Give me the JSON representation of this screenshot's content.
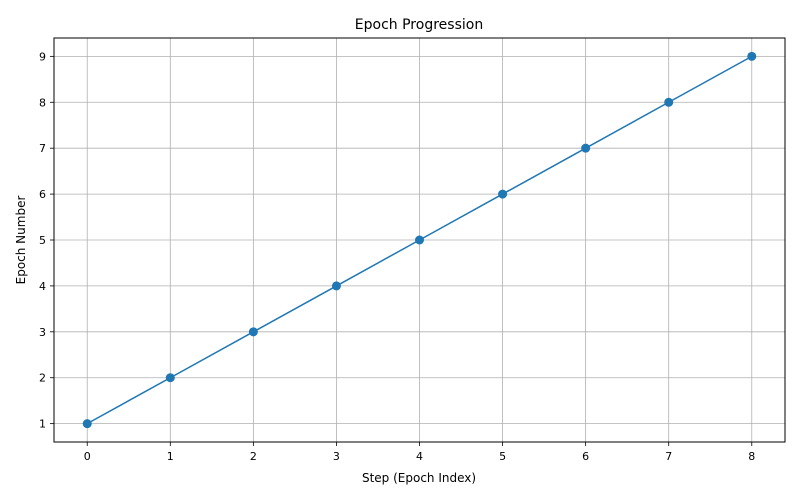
{
  "chart_data": {
    "type": "line",
    "title": "Epoch Progression",
    "xlabel": "Step (Epoch Index)",
    "ylabel": "Epoch Number",
    "x": [
      0,
      1,
      2,
      3,
      4,
      5,
      6,
      7,
      8
    ],
    "series": [
      {
        "values": [
          1,
          2,
          3,
          4,
          5,
          6,
          7,
          8,
          9
        ]
      }
    ],
    "xlim": [
      -0.4,
      8.4
    ],
    "ylim": [
      0.6,
      9.4
    ],
    "xticks": [
      0,
      1,
      2,
      3,
      4,
      5,
      6,
      7,
      8
    ],
    "yticks": [
      1,
      2,
      3,
      4,
      5,
      6,
      7,
      8,
      9
    ],
    "grid": true,
    "marker": "circle",
    "line_color": "#1f77b4",
    "grid_color": "#b0b0b0"
  }
}
